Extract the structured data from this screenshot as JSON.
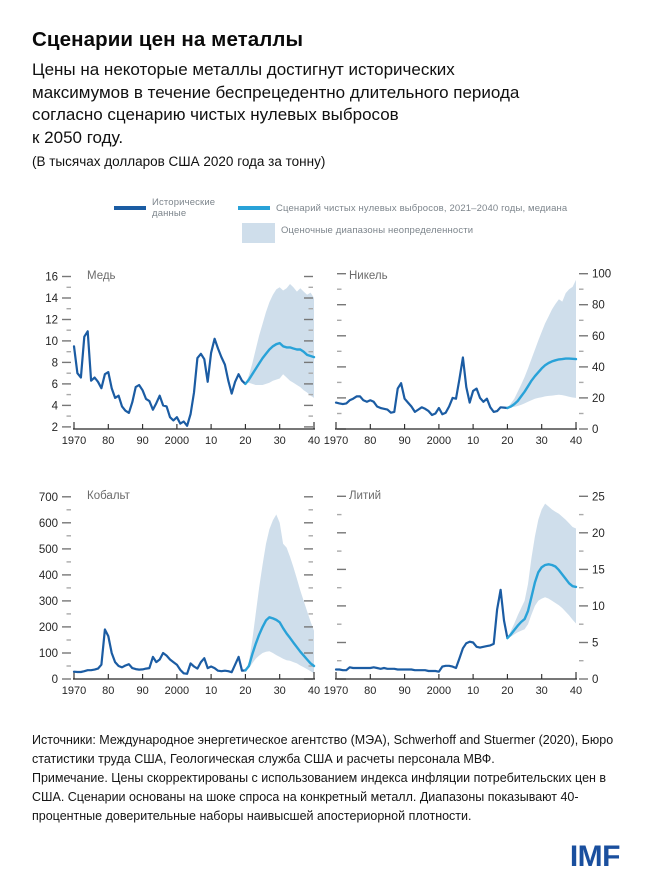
{
  "header": {
    "title": "Сценарии цен на металлы",
    "subtitle": "Цены на некоторые металлы достигнут исторических\nмаксимумов в течение беспрецедентно длительного периода\nсогласно сценарию чистых нулевых выбросов\nк 2050 году.",
    "units": "(В тысячах долларов США 2020 года за тонну)"
  },
  "legend": {
    "historical": "Исторические данные",
    "scenario": "Сценарий чистых нулевых выбросов, 2021–2040 годы, медиана",
    "band": "Оценочные диапазоны неопределенности"
  },
  "colors": {
    "historical": "#1b5ca3",
    "scenario": "#29a2d8",
    "band": "#cfdeeb",
    "axis": "#262626",
    "tick_major": "#777777",
    "tick_minor": "#aaaaaa",
    "tick_label": "#262626",
    "chart_title": "#6b6b6b",
    "logo": "#1a4f9e"
  },
  "chart_data": [
    {
      "type": "line",
      "title": "Медь",
      "y_axis_side": "left",
      "ylim": [
        1.8,
        16.7
      ],
      "yticks_major": [
        2,
        4,
        6,
        8,
        10,
        12,
        14,
        16
      ],
      "yticks_minor": [
        3,
        5,
        7,
        9,
        11,
        13,
        15
      ],
      "xticks": [
        1970,
        1980,
        1990,
        2000,
        2010,
        2020,
        2030,
        2040
      ],
      "xtick_labels": [
        "1970",
        "80",
        "90",
        "2000",
        "10",
        "20",
        "30",
        "40"
      ],
      "series": [
        {
          "name": "Исторические данные",
          "start_year": 1970,
          "values": [
            9.5,
            7.0,
            6.6,
            10.4,
            10.9,
            6.3,
            6.6,
            6.2,
            5.6,
            6.9,
            7.1,
            5.6,
            4.7,
            4.9,
            3.9,
            3.5,
            3.3,
            4.3,
            5.7,
            5.9,
            5.4,
            4.6,
            4.4,
            3.6,
            4.2,
            4.9,
            4.0,
            3.9,
            2.9,
            2.6,
            2.9,
            2.3,
            2.5,
            2.1,
            3.2,
            5.2,
            8.4,
            8.8,
            8.3,
            6.2,
            8.9,
            10.2,
            9.3,
            8.5,
            7.8,
            6.3,
            5.1,
            6.2,
            6.9,
            6.3,
            6.0
          ]
        },
        {
          "name": "Сценарий чистых нулевых выбросов, медиана",
          "start_year": 2020,
          "values": [
            6.0,
            6.4,
            6.9,
            7.4,
            7.9,
            8.4,
            8.8,
            9.2,
            9.5,
            9.7,
            9.8,
            9.5,
            9.4,
            9.4,
            9.3,
            9.2,
            9.2,
            9.0,
            8.7,
            8.6,
            8.5
          ]
        }
      ],
      "band": {
        "name": "Оценочные диапазоны неопределенности",
        "start_year": 2020,
        "lower": [
          6.0,
          6.1,
          6.0,
          5.9,
          5.9,
          5.9,
          6.0,
          6.1,
          6.3,
          6.4,
          6.5,
          6.9,
          6.6,
          6.3,
          6.1,
          5.9,
          5.7,
          5.4,
          5.2,
          4.9,
          4.7
        ],
        "upper": [
          6.0,
          6.8,
          7.9,
          9.2,
          10.5,
          11.6,
          12.7,
          13.6,
          14.3,
          14.8,
          15.0,
          14.7,
          14.9,
          15.3,
          15.0,
          14.6,
          14.9,
          14.6,
          14.3,
          14.5,
          14.0
        ]
      }
    },
    {
      "type": "line",
      "title": "Никель",
      "y_axis_side": "right",
      "ylim": [
        0,
        103
      ],
      "yticks_major": [
        0,
        20,
        40,
        60,
        80,
        100
      ],
      "yticks_minor": [
        10,
        30,
        50,
        70,
        90
      ],
      "xticks": [
        1970,
        1980,
        1990,
        2000,
        2010,
        2020,
        2030,
        2040
      ],
      "xtick_labels": [
        "1970",
        "80",
        "90",
        "2000",
        "10",
        "20",
        "30",
        "40"
      ],
      "series": [
        {
          "name": "Исторические данные",
          "start_year": 1970,
          "values": [
            17,
            16.5,
            16,
            16.5,
            18.5,
            19.5,
            21,
            21,
            18.5,
            17.5,
            18.5,
            17.5,
            14.5,
            13.5,
            13,
            12.5,
            10.5,
            11,
            26,
            29.5,
            19.5,
            17,
            14.5,
            11,
            12.5,
            14,
            13,
            11.5,
            9,
            10,
            13.5,
            9.5,
            10.5,
            14.5,
            20,
            19.5,
            32,
            46,
            27,
            17,
            24.5,
            26,
            20,
            17.5,
            19.5,
            14,
            11,
            11.5,
            14,
            13.8,
            13.5
          ]
        },
        {
          "name": "Сценарий чистых нулевых выбросов, медиана",
          "start_year": 2020,
          "values": [
            13.5,
            14.5,
            16,
            18,
            21,
            24,
            27.5,
            31,
            34,
            36.5,
            39,
            41,
            42.5,
            43.5,
            44.2,
            44.8,
            45,
            45.3,
            45.3,
            45.2,
            45
          ]
        }
      ],
      "band": {
        "name": "Оценочные диапазоны неопределенности",
        "start_year": 2020,
        "lower": [
          13.5,
          14,
          14.2,
          14.8,
          15.5,
          16.5,
          17.5,
          18.5,
          19.5,
          20,
          20.5,
          21,
          21.3,
          21.5,
          21.8,
          22,
          21.8,
          21.3,
          20.8,
          20.3,
          20
        ],
        "upper": [
          13.5,
          16.5,
          19.5,
          24,
          28.5,
          33.5,
          39,
          45,
          51,
          57,
          62.5,
          68,
          72.5,
          77,
          80.5,
          83.5,
          82,
          87.5,
          90,
          91.5,
          96
        ]
      }
    },
    {
      "type": "line",
      "title": "Кобальт",
      "y_axis_side": "left",
      "ylim": [
        0,
        730
      ],
      "yticks_major": [
        0,
        100,
        200,
        300,
        400,
        500,
        600,
        700
      ],
      "yticks_minor": [
        50,
        150,
        250,
        350,
        450,
        550,
        650
      ],
      "xticks": [
        1970,
        1980,
        1990,
        2000,
        2010,
        2020,
        2030,
        2040
      ],
      "xtick_labels": [
        "1970",
        "80",
        "90",
        "2000",
        "10",
        "20",
        "30",
        "40"
      ],
      "series": [
        {
          "name": "Исторические данные",
          "start_year": 1970,
          "values": [
            28,
            27,
            27,
            30,
            34,
            34,
            36,
            40,
            55,
            190,
            165,
            100,
            65,
            50,
            45,
            52,
            57,
            42,
            38,
            36,
            37,
            40,
            42,
            85,
            65,
            75,
            100,
            90,
            75,
            65,
            55,
            35,
            22,
            20,
            60,
            48,
            40,
            65,
            80,
            42,
            48,
            42,
            32,
            30,
            32,
            30,
            26,
            55,
            85,
            32,
            33
          ]
        },
        {
          "name": "Сценарий чистых нулевых выбросов, медиана",
          "start_year": 2020,
          "values": [
            33,
            50,
            95,
            135,
            170,
            200,
            225,
            237,
            233,
            227,
            218,
            195,
            175,
            158,
            140,
            122,
            105,
            90,
            75,
            60,
            50
          ]
        }
      ],
      "band": {
        "name": "Оценочные диапазоны неопределенности",
        "start_year": 2020,
        "lower": [
          33,
          42,
          60,
          78,
          90,
          100,
          105,
          107,
          100,
          92,
          85,
          78,
          72,
          70,
          65,
          60,
          52,
          45,
          38,
          30,
          22
        ],
        "upper": [
          33,
          65,
          150,
          250,
          350,
          440,
          520,
          575,
          610,
          632,
          600,
          520,
          505,
          470,
          430,
          385,
          340,
          300,
          260,
          220,
          185
        ]
      }
    },
    {
      "type": "line",
      "title": "Литий",
      "y_axis_side": "right",
      "ylim": [
        0,
        26
      ],
      "yticks_major": [
        0,
        5,
        10,
        15,
        20,
        25
      ],
      "yticks_minor": [
        2.5,
        7.5,
        12.5,
        17.5,
        22.5
      ],
      "xticks": [
        1970,
        1980,
        1990,
        2000,
        2010,
        2020,
        2030,
        2040
      ],
      "xtick_labels": [
        "1970",
        "80",
        "90",
        "2000",
        "10",
        "20",
        "30",
        "40"
      ],
      "series": [
        {
          "name": "Исторические данные",
          "start_year": 1970,
          "values": [
            1.3,
            1.3,
            1.2,
            1.2,
            1.6,
            1.5,
            1.5,
            1.5,
            1.5,
            1.5,
            1.5,
            1.6,
            1.5,
            1.4,
            1.5,
            1.4,
            1.4,
            1.4,
            1.3,
            1.3,
            1.3,
            1.3,
            1.3,
            1.2,
            1.2,
            1.2,
            1.2,
            1.1,
            1.1,
            1.1,
            1.0,
            1.7,
            1.8,
            1.8,
            1.7,
            1.5,
            2.8,
            4.2,
            4.9,
            5.1,
            5.0,
            4.4,
            4.3,
            4.4,
            4.5,
            4.6,
            4.8,
            9.5,
            12.2,
            8.0,
            5.6
          ]
        },
        {
          "name": "Сценарий чистых нулевых выбросов, медиана",
          "start_year": 2020,
          "values": [
            5.6,
            6.1,
            6.7,
            7.3,
            7.8,
            8.2,
            9.3,
            11.2,
            13.2,
            14.6,
            15.3,
            15.6,
            15.7,
            15.6,
            15.4,
            14.9,
            14.3,
            13.7,
            13.1,
            12.7,
            12.6
          ]
        }
      ],
      "band": {
        "name": "Оценочные диапазоны неопределенности",
        "start_year": 2020,
        "lower": [
          5.6,
          5.8,
          6.1,
          6.4,
          6.6,
          6.8,
          7.5,
          8.8,
          10.0,
          10.7,
          11.0,
          11.2,
          11.0,
          10.7,
          10.4,
          10.1,
          9.7,
          9.2,
          8.7,
          8.1,
          7.6
        ],
        "upper": [
          5.6,
          6.6,
          7.6,
          8.7,
          9.7,
          10.7,
          13.0,
          16.5,
          19.5,
          21.8,
          23.2,
          24.0,
          23.6,
          23.2,
          22.9,
          22.6,
          22.2,
          21.8,
          21.3,
          20.8,
          20.6
        ]
      }
    }
  ],
  "footer": {
    "sources": "Источники: Международное энергетическое агентство (МЭА), Schwerhoff and Stuermer (2020), Бюро статистики труда США, Геологическая служба США и расчеты персонала МВФ.",
    "note": "Примечание. Цены скорректированы с использованием индекса инфляции потребительских цен в США. Сценарии основаны на шоке спроса на конкретный металл. Диапазоны показывают 40-процентные доверительные наборы наивысшей апостериорной плотности.",
    "logo": "IMF"
  }
}
